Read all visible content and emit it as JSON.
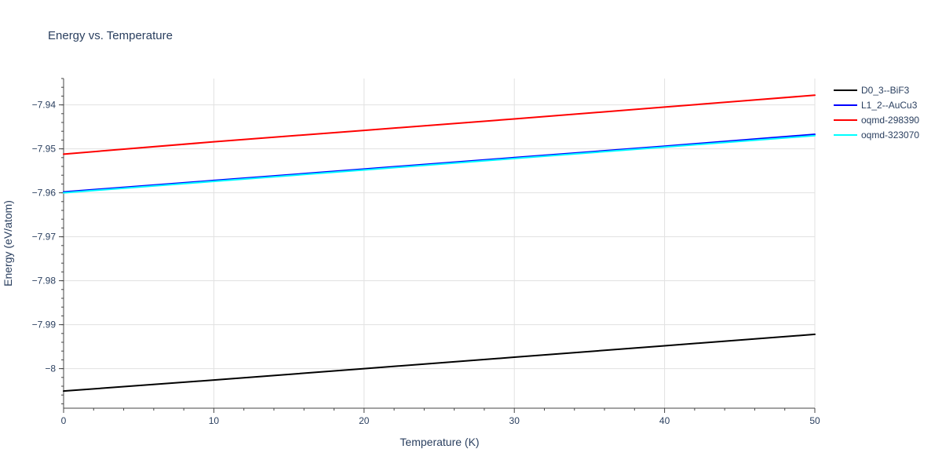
{
  "chart_data": {
    "type": "line",
    "title": "Energy vs. Temperature",
    "xlabel": "Temperature (K)",
    "ylabel": "Energy (eV/atom)",
    "xlim": [
      0,
      50
    ],
    "ylim": [
      -8.009,
      -7.934
    ],
    "x_ticks": [
      0,
      10,
      20,
      30,
      40,
      50
    ],
    "y_ticks": [
      -8,
      -7.99,
      -7.98,
      -7.97,
      -7.96,
      -7.95,
      -7.94
    ],
    "x_tick_labels": [
      "0",
      "10",
      "20",
      "30",
      "40",
      "50"
    ],
    "y_tick_labels": [
      "−8",
      "−7.99",
      "−7.98",
      "−7.97",
      "−7.96",
      "−7.95",
      "−7.94"
    ],
    "grid": true,
    "legend_position": "top-right outside",
    "series": [
      {
        "name": "D0_3--BiF3",
        "color": "#000000",
        "x": [
          0,
          10,
          20,
          30,
          40,
          50
        ],
        "y": [
          -8.0051,
          -8.0026,
          -8.0,
          -7.9974,
          -7.9948,
          -7.9922
        ]
      },
      {
        "name": "L1_2--AuCu3",
        "color": "#0000ff",
        "x": [
          0,
          10,
          20,
          30,
          40,
          50
        ],
        "y": [
          -7.9598,
          -7.9572,
          -7.9546,
          -7.952,
          -7.9494,
          -7.9467
        ]
      },
      {
        "name": "oqmd-298390",
        "color": "#ff0000",
        "x": [
          0,
          10,
          20,
          30,
          40,
          50
        ],
        "y": [
          -7.9512,
          -7.9484,
          -7.9458,
          -7.9432,
          -7.9405,
          -7.9378
        ]
      },
      {
        "name": "oqmd-323070",
        "color": "#00ffff",
        "x": [
          0,
          10,
          20,
          30,
          40,
          50
        ],
        "y": [
          -7.96,
          -7.9574,
          -7.9548,
          -7.9522,
          -7.9496,
          -7.947
        ]
      }
    ]
  }
}
